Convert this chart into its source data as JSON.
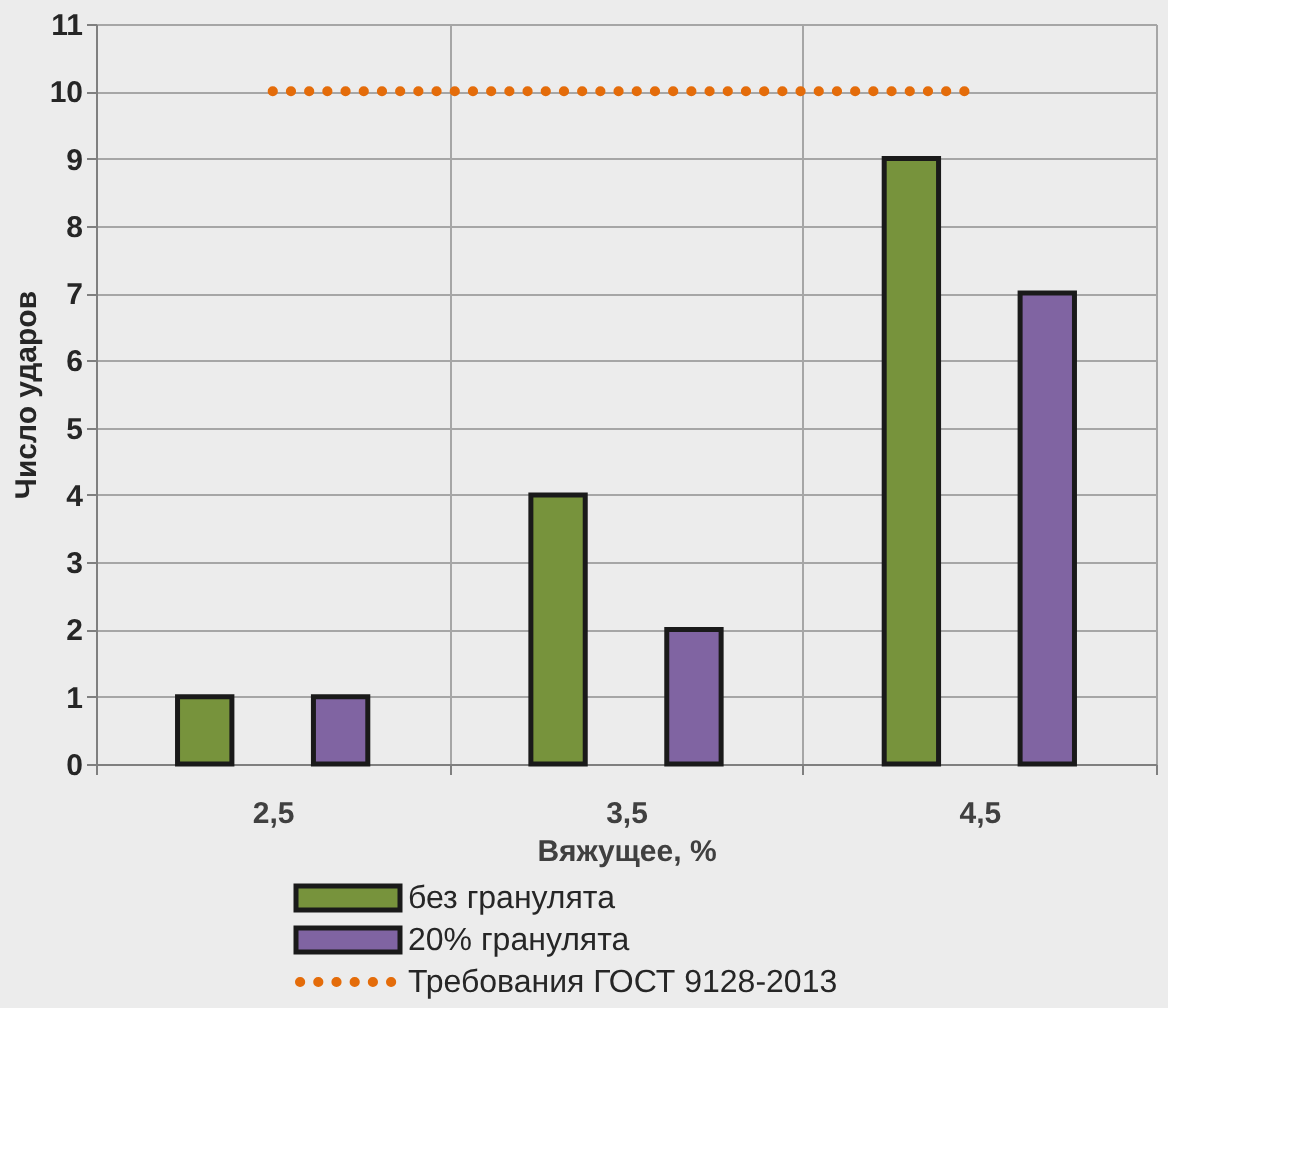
{
  "chart_data": {
    "type": "bar",
    "xlabel": "Вяжущее, %",
    "ylabel": "Число ударов",
    "categories": [
      "2,5",
      "3,5",
      "4,5"
    ],
    "series": [
      {
        "name": "без гранулята",
        "color": "#77933c",
        "values": [
          1,
          4,
          9
        ]
      },
      {
        "name": "20% гранулята",
        "color": "#8064a2",
        "values": [
          1,
          2,
          7
        ]
      },
      {
        "name": "Требования ГОСТ 9128-2013",
        "type": "line",
        "color": "#e46c0a",
        "line_style": "dotted",
        "values": [
          10,
          10,
          10
        ]
      }
    ],
    "ylim": [
      0,
      11
    ],
    "yticks": [
      0,
      1,
      2,
      3,
      4,
      5,
      6,
      7,
      8,
      9,
      10,
      11
    ],
    "grid": true,
    "legend": "bottom"
  }
}
